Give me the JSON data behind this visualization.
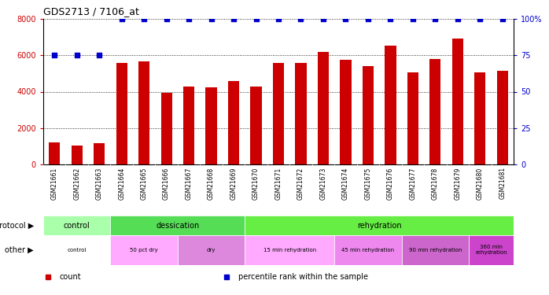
{
  "title": "GDS2713 / 7106_at",
  "samples": [
    "GSM21661",
    "GSM21662",
    "GSM21663",
    "GSM21664",
    "GSM21665",
    "GSM21666",
    "GSM21667",
    "GSM21668",
    "GSM21669",
    "GSM21670",
    "GSM21671",
    "GSM21672",
    "GSM21673",
    "GSM21674",
    "GSM21675",
    "GSM21676",
    "GSM21677",
    "GSM21678",
    "GSM21679",
    "GSM21680",
    "GSM21681"
  ],
  "bar_values": [
    1200,
    1050,
    1150,
    5600,
    5650,
    3950,
    4300,
    4250,
    4600,
    4300,
    5600,
    5600,
    6200,
    5750,
    5400,
    6550,
    5050,
    5800,
    6900,
    5050,
    5150
  ],
  "percentile_values": [
    75,
    75,
    75,
    100,
    100,
    100,
    100,
    100,
    100,
    100,
    100,
    100,
    100,
    100,
    100,
    100,
    100,
    100,
    100,
    100,
    100
  ],
  "bar_color": "#cc0000",
  "percentile_color": "#0000cc",
  "ylim_left": [
    0,
    8000
  ],
  "ylim_right": [
    0,
    100
  ],
  "yticks_left": [
    0,
    2000,
    4000,
    6000,
    8000
  ],
  "yticks_right": [
    0,
    25,
    50,
    75,
    100
  ],
  "protocol_groups": [
    {
      "label": "control",
      "start": 0,
      "end": 3,
      "color": "#aaffaa"
    },
    {
      "label": "dessication",
      "start": 3,
      "end": 9,
      "color": "#55dd55"
    },
    {
      "label": "rehydration",
      "start": 9,
      "end": 21,
      "color": "#66ee44"
    }
  ],
  "other_groups": [
    {
      "label": "control",
      "start": 0,
      "end": 3,
      "color": "#ffffff"
    },
    {
      "label": "50 pct dry",
      "start": 3,
      "end": 6,
      "color": "#ffaaff"
    },
    {
      "label": "dry",
      "start": 6,
      "end": 9,
      "color": "#dd88dd"
    },
    {
      "label": "15 min rehydration",
      "start": 9,
      "end": 13,
      "color": "#ffaaff"
    },
    {
      "label": "45 min rehydration",
      "start": 13,
      "end": 16,
      "color": "#ee88ee"
    },
    {
      "label": "90 min rehydration",
      "start": 16,
      "end": 19,
      "color": "#cc66cc"
    },
    {
      "label": "360 min\nrehydration",
      "start": 19,
      "end": 21,
      "color": "#cc44cc"
    }
  ],
  "legend_items": [
    {
      "label": "count",
      "color": "#cc0000",
      "marker": "s"
    },
    {
      "label": "percentile rank within the sample",
      "color": "#0000cc",
      "marker": "s"
    }
  ],
  "protocol_label": "protocol",
  "other_label": "other",
  "tick_label_color_left": "#cc0000",
  "tick_label_color_right": "#0000cc",
  "xtick_bg_color": "#cccccc"
}
